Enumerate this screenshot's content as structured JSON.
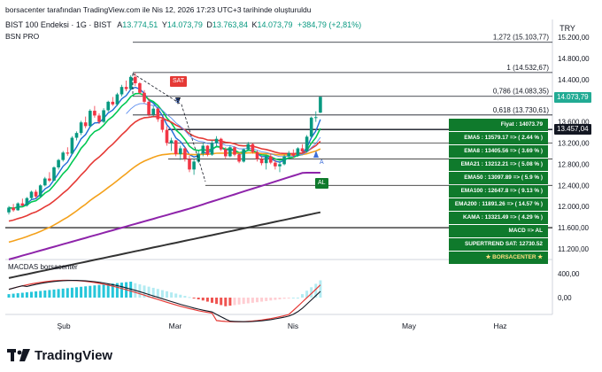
{
  "header": {
    "top_note": "borsacenter tarafından TradingView.com ile Nis 12, 2026 17:23 UTC+3 tarihinde oluşturuldu",
    "symbol": "BIST 100 Endeksi · 1G · BIST",
    "open_label": "A",
    "open": "13.774,51",
    "high_label": "Y",
    "high": "14.073,79",
    "low_label": "D",
    "low": "13.763,84",
    "close_label": "K",
    "close": "14.073,79",
    "change": "+384,79 (+2,81%)",
    "sub_title": "BSN PRO",
    "currency": "TRY"
  },
  "fib_labels": [
    "1,272 (15.103,77)",
    "1 (14.532,67)",
    "0,786 (14.083,35)",
    "0,618 (13.730,61)"
  ],
  "price_axis": [
    "15.200,00",
    "14.800,00",
    "14.400,00",
    "14.000,00",
    "13.600,00",
    "13.200,00",
    "12.800,00",
    "12.400,00",
    "12.000,00",
    "11.600,00",
    "11.200,00"
  ],
  "price_tags": {
    "last": "14.073,79",
    "level": "13.457,04",
    "last_color": "#22ab94",
    "level_color": "#131722"
  },
  "signals": {
    "sat": "SAT",
    "al": "AL",
    "s_mark": "S",
    "a_mark": "A"
  },
  "info_box": [
    "Fiyat : 14073.79",
    "EMA5 : 13579.17 => ( 2.44 % )",
    "EMA8 : 13405.56 => ( 3.69 % )",
    "EMA21 : 13212.21 => ( 5.08 % )",
    "EMA50 : 13097.89 => ( 5.9 % )",
    "EMA100 : 12647.8 => ( 9.13 % )",
    "EMA200 : 11891.26 => ( 14.57 % )",
    "KAMA : 13321.49 => ( 4.29 % )",
    "MACD => AL",
    "SUPERTREND SAT: 12730.52",
    "★ BORSACENTER ★"
  ],
  "macd_panel": {
    "title": "MACDAS borsacenter",
    "axis": [
      "400,00",
      "0,00"
    ]
  },
  "time_axis": [
    "Şub",
    "Mar",
    "Nis",
    "May",
    "Haz"
  ],
  "logo": "TradingView",
  "colors": {
    "up": "#089981",
    "down": "#f23645",
    "ema_short": "#1e6bd6",
    "ema_mid": "#00c853",
    "ema_red": "#e53935",
    "ema_orange": "#f4a11b",
    "ema_purple": "#8e24aa",
    "ema_black": "#333333",
    "box": "#0f7a2c"
  },
  "chart_data": {
    "type": "candlestick",
    "x": [
      "Şub",
      "Mar",
      "Nis",
      "May",
      "Haz"
    ],
    "candles": [
      [
        11890,
        12010,
        11850,
        11980
      ],
      [
        11980,
        12050,
        11900,
        11930
      ],
      [
        11930,
        12080,
        11920,
        12060
      ],
      [
        12060,
        12150,
        12000,
        12020
      ],
      [
        12020,
        12180,
        12000,
        12160
      ],
      [
        12160,
        12300,
        12120,
        12280
      ],
      [
        12280,
        12320,
        12150,
        12190
      ],
      [
        12190,
        12420,
        12170,
        12400
      ],
      [
        12400,
        12560,
        12380,
        12530
      ],
      [
        12530,
        12650,
        12460,
        12490
      ],
      [
        12490,
        12760,
        12480,
        12740
      ],
      [
        12740,
        12900,
        12700,
        12880
      ],
      [
        12880,
        13050,
        12850,
        13020
      ],
      [
        13020,
        13120,
        12960,
        13000
      ],
      [
        13000,
        13330,
        12990,
        13300
      ],
      [
        13300,
        13420,
        13250,
        13390
      ],
      [
        13390,
        13620,
        13350,
        13590
      ],
      [
        13590,
        13700,
        13480,
        13520
      ],
      [
        13520,
        13840,
        13500,
        13810
      ],
      [
        13810,
        13900,
        13680,
        13720
      ],
      [
        13720,
        13760,
        13560,
        13600
      ],
      [
        13600,
        13860,
        13580,
        13820
      ],
      [
        13820,
        14000,
        13790,
        13980
      ],
      [
        13980,
        14070,
        13900,
        13930
      ],
      [
        13930,
        14150,
        13900,
        14120
      ],
      [
        14120,
        14300,
        14080,
        14260
      ],
      [
        14260,
        14380,
        14180,
        14220
      ],
      [
        14220,
        14480,
        14200,
        14450
      ],
      [
        14450,
        14520,
        14280,
        14330
      ],
      [
        14330,
        14350,
        14120,
        14150
      ],
      [
        14150,
        14200,
        13950,
        13980
      ],
      [
        13980,
        14050,
        13700,
        13740
      ],
      [
        13740,
        13900,
        13700,
        13850
      ],
      [
        13850,
        13870,
        13600,
        13650
      ],
      [
        13650,
        13700,
        13400,
        13450
      ],
      [
        13450,
        13520,
        13150,
        13200
      ],
      [
        13200,
        13300,
        13050,
        13250
      ],
      [
        13250,
        13260,
        12950,
        12990
      ],
      [
        12990,
        13150,
        12880,
        13100
      ],
      [
        13100,
        13120,
        12850,
        12900
      ],
      [
        12900,
        12960,
        12650,
        12700
      ],
      [
        12700,
        12900,
        12600,
        12850
      ],
      [
        12850,
        13050,
        12820,
        13000
      ],
      [
        13000,
        13200,
        12950,
        13150
      ],
      [
        13150,
        13160,
        12950,
        12980
      ],
      [
        12980,
        13250,
        12960,
        13200
      ],
      [
        13200,
        13330,
        13150,
        13280
      ],
      [
        13280,
        13300,
        13050,
        13080
      ],
      [
        13080,
        13120,
        12900,
        12950
      ],
      [
        12950,
        13150,
        12930,
        13120
      ],
      [
        13120,
        13140,
        12950,
        12980
      ],
      [
        12980,
        13010,
        12820,
        12850
      ],
      [
        12850,
        13100,
        12830,
        13080
      ],
      [
        13080,
        13220,
        13050,
        13180
      ],
      [
        13180,
        13200,
        13000,
        13030
      ],
      [
        13030,
        13060,
        12850,
        12900
      ],
      [
        12900,
        12950,
        12780,
        12820
      ],
      [
        12820,
        12980,
        12700,
        12950
      ],
      [
        12950,
        13000,
        12800,
        12830
      ],
      [
        12830,
        12900,
        12700,
        12760
      ],
      [
        12760,
        12850,
        12650,
        12800
      ],
      [
        12800,
        12980,
        12780,
        12950
      ],
      [
        12950,
        13050,
        12900,
        13010
      ],
      [
        13010,
        13080,
        12920,
        12960
      ],
      [
        12960,
        13120,
        12940,
        13100
      ],
      [
        13100,
        13180,
        13000,
        13040
      ],
      [
        13040,
        13350,
        13020,
        13320
      ],
      [
        13320,
        13700,
        13300,
        13680
      ],
      [
        13680,
        13800,
        13600,
        13689
      ],
      [
        13774.51,
        14073.79,
        13763.84,
        14073.79
      ]
    ],
    "fib_levels": [
      {
        "ratio": "1,272",
        "value": 15103.77
      },
      {
        "ratio": "1",
        "value": 14532.67
      },
      {
        "ratio": "0,786",
        "value": 14083.35
      },
      {
        "ratio": "0,618",
        "value": 13730.61
      }
    ],
    "support_lines": [
      13457.04,
      13200,
      12900,
      12400,
      11600
    ],
    "ylim": [
      11000,
      15250
    ],
    "macd_ylim": [
      -250,
      500
    ]
  }
}
